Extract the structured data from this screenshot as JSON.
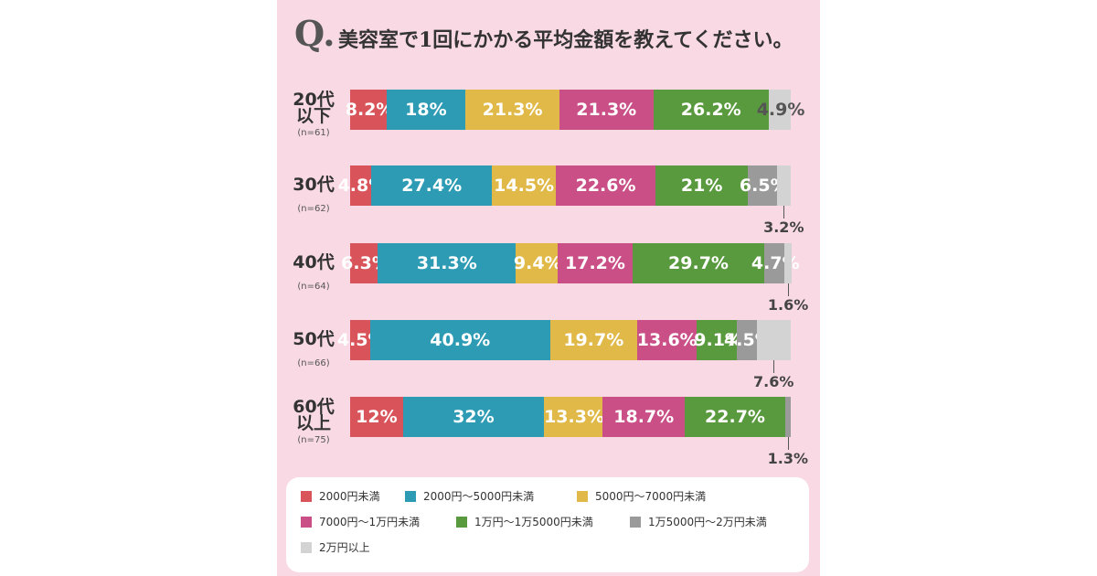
{
  "chart_data": {
    "type": "stacked-bar-horizontal",
    "question_mark": "Q.",
    "title": "美容室で1回にかかる平均金額を教えてください。",
    "categories": [
      "20代\n以下",
      "30代",
      "40代",
      "50代",
      "60代\n以上"
    ],
    "sample_sizes": [
      "(n=61)",
      "(n=62)",
      "(n=64)",
      "(n=66)",
      "(n=75)"
    ],
    "xlim": [
      0,
      100
    ],
    "series": [
      {
        "name": "2000円未満",
        "color": "#d9545a",
        "values": [
          8.2,
          4.8,
          6.3,
          4.5,
          12
        ],
        "value_labels": [
          "8.2%",
          "4.8%",
          "6.3%",
          "4.5%",
          "12%"
        ]
      },
      {
        "name": "2000円〜5000円未満",
        "color": "#2e9bb5",
        "values": [
          18,
          27.4,
          31.3,
          40.9,
          32
        ],
        "value_labels": [
          "18%",
          "27.4%",
          "31.3%",
          "40.9%",
          "32%"
        ]
      },
      {
        "name": "5000円〜7000円未満",
        "color": "#e0b948",
        "values": [
          21.3,
          14.5,
          9.4,
          19.7,
          13.3
        ],
        "value_labels": [
          "21.3%",
          "14.5%",
          "9.4%",
          "19.7%",
          "13.3%"
        ]
      },
      {
        "name": "7000円〜1万円未満",
        "color": "#c94f86",
        "values": [
          21.3,
          22.6,
          17.2,
          13.6,
          18.7
        ],
        "value_labels": [
          "21.3%",
          "22.6%",
          "17.2%",
          "13.6%",
          "18.7%"
        ]
      },
      {
        "name": "1万円〜1万5000円未満",
        "color": "#5a9a3e",
        "values": [
          26.2,
          21,
          29.7,
          9.1,
          22.7
        ],
        "value_labels": [
          "26.2%",
          "21%",
          "29.7%",
          "9.1%",
          "22.7%"
        ]
      },
      {
        "name": "1万5000円〜2万円未満",
        "color": "#9a9a9a",
        "values": [
          null,
          6.5,
          4.7,
          4.5,
          1.3
        ],
        "value_labels": [
          null,
          "6.5%",
          "4.7%",
          "4.5%",
          "1.3%"
        ]
      },
      {
        "name": "2万円以上",
        "color": "#d3d3d3",
        "values": [
          4.9,
          3.2,
          1.6,
          7.6,
          null
        ],
        "value_labels": [
          "4.9%",
          "3.2%",
          "1.6%",
          "7.6%",
          null
        ]
      }
    ]
  }
}
